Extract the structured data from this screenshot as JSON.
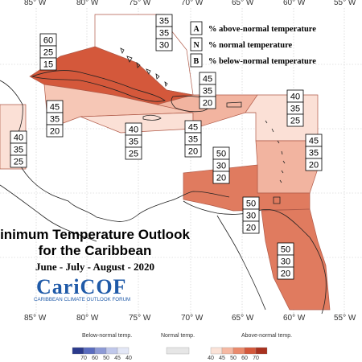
{
  "longitude_labels": [
    "85° W",
    "80° W",
    "75° W",
    "70° W",
    "65° W",
    "60° W",
    "55° W"
  ],
  "title_line1": "inimum Temperature Outlook",
  "title_line2": "for the Caribbean",
  "period": "June - July - August - 2020",
  "logo_text": "CariCOF",
  "logo_subtitle": "CARIBBEAN CLIMATE OUTLOOK FORUM",
  "legend": {
    "items": [
      {
        "key": "A",
        "text": "% above-normal temperature"
      },
      {
        "key": "N",
        "text": "% normal temperature"
      },
      {
        "key": "B",
        "text": "% below-normal temperature"
      }
    ]
  },
  "probability_boxes": [
    {
      "id": "cuba",
      "values": [
        "60",
        "25",
        "15"
      ]
    },
    {
      "id": "bahamas",
      "values": [
        "35",
        "35",
        "30"
      ]
    },
    {
      "id": "turks",
      "values": [
        "45",
        "35",
        "20"
      ]
    },
    {
      "id": "leeward-north",
      "values": [
        "40",
        "35",
        "25"
      ]
    },
    {
      "id": "central-america-west",
      "values": [
        "40",
        "35",
        "25"
      ]
    },
    {
      "id": "cayman",
      "values": [
        "45",
        "35",
        "20"
      ]
    },
    {
      "id": "jamaica",
      "values": [
        "40",
        "35",
        "25"
      ]
    },
    {
      "id": "hispaniola",
      "values": [
        "45",
        "35",
        "20"
      ]
    },
    {
      "id": "windward",
      "values": [
        "45",
        "35",
        "20"
      ]
    },
    {
      "id": "abc-islands",
      "values": [
        "50",
        "30",
        "20"
      ]
    },
    {
      "id": "trinidad",
      "values": [
        "50",
        "30",
        "20"
      ]
    },
    {
      "id": "guianas",
      "values": [
        "50",
        "30",
        "20"
      ]
    }
  ],
  "colorbar": {
    "below_label": "Below-normal temp.",
    "normal_label": "Normal temp.",
    "above_label": "Above-normal temp.",
    "below_ticks": [
      "70",
      "60",
      "50",
      "45",
      "40"
    ],
    "above_ticks": [
      "40",
      "45",
      "50",
      "60",
      "70"
    ],
    "below_colors": [
      "#2b3a8c",
      "#5a6cbf",
      "#8d9ad6",
      "#c0c8eb",
      "#e3e7f6"
    ],
    "normal_color": "#e6e6e6",
    "above_colors": [
      "#fbe3d8",
      "#f6b9a3",
      "#ea8a6c",
      "#d4583b",
      "#a8311f"
    ]
  },
  "colors": {
    "cat_60": "#d4583b",
    "cat_50": "#e07b5f",
    "cat_45": "#f2b4a0",
    "cat_40": "#fbe0d6",
    "cat_35": "#ffffff",
    "logo_blue": "#1f5aa8"
  }
}
